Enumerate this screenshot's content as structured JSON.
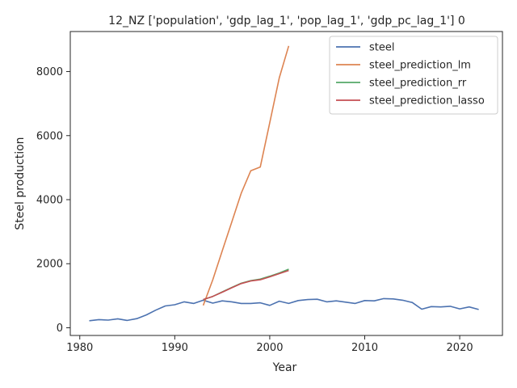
{
  "chart_data": {
    "type": "line",
    "title": "12_NZ ['population', 'gdp_lag_1', 'pop_lag_1', 'gdp_pc_lag_1'] 0",
    "xlabel": "Year",
    "ylabel": "Steel production",
    "xlim": [
      1979,
      2024.5
    ],
    "ylim": [
      -240,
      9250
    ],
    "xticks": [
      1980,
      1990,
      2000,
      2010,
      2020
    ],
    "yticks": [
      0,
      2000,
      4000,
      6000,
      8000
    ],
    "grid": false,
    "legend_position": "top-right",
    "series": [
      {
        "name": "steel",
        "color": "#4c72b0",
        "x": [
          1981,
          1982,
          1983,
          1984,
          1985,
          1986,
          1987,
          1988,
          1989,
          1990,
          1991,
          1992,
          1993,
          1994,
          1995,
          1996,
          1997,
          1998,
          1999,
          2000,
          2001,
          2002,
          2003,
          2004,
          2005,
          2006,
          2007,
          2008,
          2009,
          2010,
          2011,
          2012,
          2013,
          2014,
          2015,
          2016,
          2017,
          2018,
          2019,
          2020,
          2021,
          2022
        ],
        "values": [
          220,
          255,
          240,
          280,
          230,
          285,
          400,
          550,
          680,
          720,
          810,
          760,
          860,
          770,
          840,
          810,
          760,
          760,
          780,
          700,
          830,
          760,
          850,
          880,
          890,
          810,
          840,
          800,
          760,
          850,
          840,
          910,
          900,
          860,
          790,
          580,
          660,
          650,
          670,
          590,
          650,
          570
        ]
      },
      {
        "name": "steel_prediction_lm",
        "color": "#dd8452",
        "x": [
          1993,
          1994,
          1995,
          1996,
          1997,
          1998,
          1999,
          2000,
          2001,
          2002
        ],
        "values": [
          700,
          1500,
          2400,
          3300,
          4200,
          4900,
          5020,
          6400,
          7800,
          8800
        ]
      },
      {
        "name": "steel_prediction_rr",
        "color": "#55a868",
        "x": [
          1993,
          1994,
          1995,
          1996,
          1997,
          1998,
          1999,
          2000,
          2001,
          2002
        ],
        "values": [
          880,
          980,
          1120,
          1260,
          1390,
          1470,
          1520,
          1610,
          1710,
          1830
        ]
      },
      {
        "name": "steel_prediction_lasso",
        "color": "#c44e52",
        "x": [
          1993,
          1994,
          1995,
          1996,
          1997,
          1998,
          1999,
          2000,
          2001,
          2002
        ],
        "values": [
          880,
          980,
          1110,
          1250,
          1380,
          1460,
          1500,
          1590,
          1690,
          1790
        ]
      }
    ]
  }
}
